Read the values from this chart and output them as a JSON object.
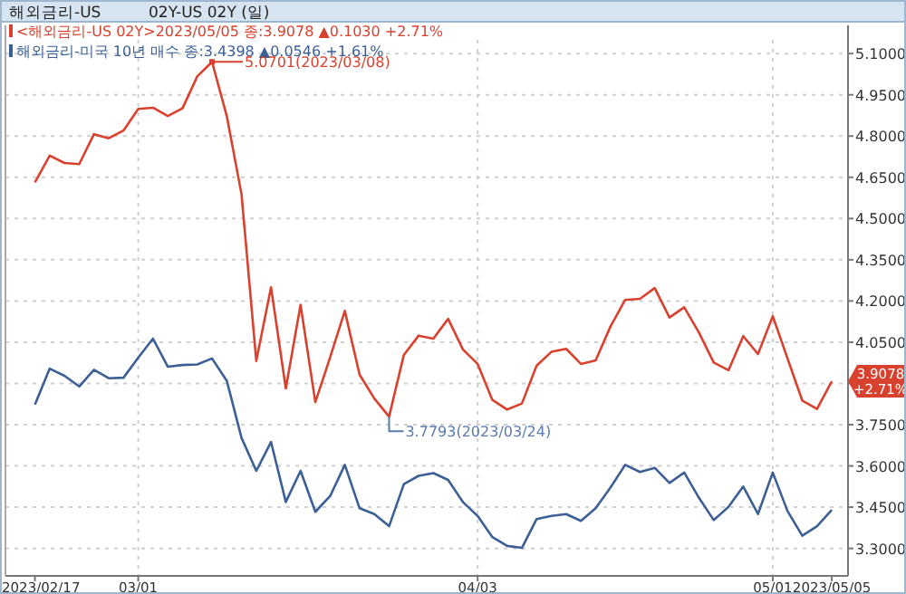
{
  "chart_data": {
    "type": "line",
    "title": "해외금리-US",
    "subtitle": "02Y-US 02Y (일)",
    "categories": [
      "2023/02/17",
      null,
      null,
      null,
      null,
      null,
      null,
      "03/01",
      null,
      null,
      null,
      null,
      null,
      null,
      null,
      null,
      null,
      null,
      null,
      null,
      null,
      null,
      null,
      null,
      null,
      null,
      null,
      null,
      null,
      null,
      "04/03",
      null,
      null,
      null,
      null,
      null,
      null,
      null,
      null,
      null,
      null,
      null,
      null,
      null,
      null,
      null,
      null,
      null,
      null,
      null,
      "05/01",
      null,
      null,
      null,
      "2023/05/05"
    ],
    "series": [
      {
        "name": "<해외금리-US 02Y>2023/05/05 종:3.9078 ▲0.1030 +2.71%",
        "color": "#d9412f",
        "values": [
          4.632,
          4.729,
          4.702,
          4.698,
          4.807,
          4.792,
          4.82,
          4.899,
          4.903,
          4.873,
          4.901,
          5.017,
          5.0701,
          4.873,
          4.588,
          3.982,
          4.25,
          3.882,
          4.186,
          3.832,
          3.994,
          4.164,
          3.932,
          3.845,
          3.7793,
          4.004,
          4.074,
          4.063,
          4.135,
          4.024,
          3.971,
          3.84,
          3.805,
          3.827,
          3.965,
          4.015,
          4.026,
          3.971,
          3.984,
          4.107,
          4.204,
          4.208,
          4.247,
          4.14,
          4.177,
          4.085,
          3.976,
          3.948,
          4.072,
          4.007,
          4.145,
          3.991,
          3.838,
          3.807,
          3.9078
        ]
      },
      {
        "name": "해외금리-미국 10년 매수 종:3.4398 ▲0.0546 +1.61%",
        "color": "#3c5f96",
        "values": [
          3.823,
          3.954,
          3.928,
          3.889,
          3.95,
          3.919,
          3.921,
          3.994,
          4.063,
          3.961,
          3.967,
          3.969,
          3.991,
          3.91,
          3.702,
          3.582,
          3.687,
          3.469,
          3.582,
          3.433,
          3.49,
          3.604,
          3.446,
          3.425,
          3.381,
          3.534,
          3.564,
          3.574,
          3.549,
          3.469,
          3.418,
          3.341,
          3.309,
          3.302,
          3.407,
          3.418,
          3.425,
          3.4,
          3.446,
          3.521,
          3.604,
          3.578,
          3.593,
          3.538,
          3.576,
          3.484,
          3.403,
          3.451,
          3.525,
          3.425,
          3.576,
          3.436,
          3.346,
          3.381,
          3.4398
        ]
      }
    ],
    "ylim": [
      3.2,
      5.15
    ],
    "yticks": [
      {
        "value": 5.1,
        "label": "5.1000"
      },
      {
        "value": 4.95,
        "label": "4.9500"
      },
      {
        "value": 4.8,
        "label": "4.8000"
      },
      {
        "value": 4.65,
        "label": "4.6500"
      },
      {
        "value": 4.5,
        "label": "4.5000"
      },
      {
        "value": 4.35,
        "label": "4.3500"
      },
      {
        "value": 4.2,
        "label": "4.2000"
      },
      {
        "value": 4.05,
        "label": "4.0500"
      },
      {
        "value": 3.9,
        "label": null
      },
      {
        "value": 3.75,
        "label": "3.7500"
      },
      {
        "value": 3.6,
        "label": "3.6000"
      },
      {
        "value": 3.45,
        "label": "3.4500"
      },
      {
        "value": 3.3,
        "label": "3.3000"
      }
    ],
    "annotations": [
      "5.0701(2023/03/08)",
      "3.7793(2023/03/24)",
      {
        "text": "3.9078 +2.71%",
        "x": "2023/05/05",
        "y": 3.9078
      }
    ],
    "grid": true,
    "legend": "top left",
    "marker": "none",
    "line_style": "solid"
  }
}
